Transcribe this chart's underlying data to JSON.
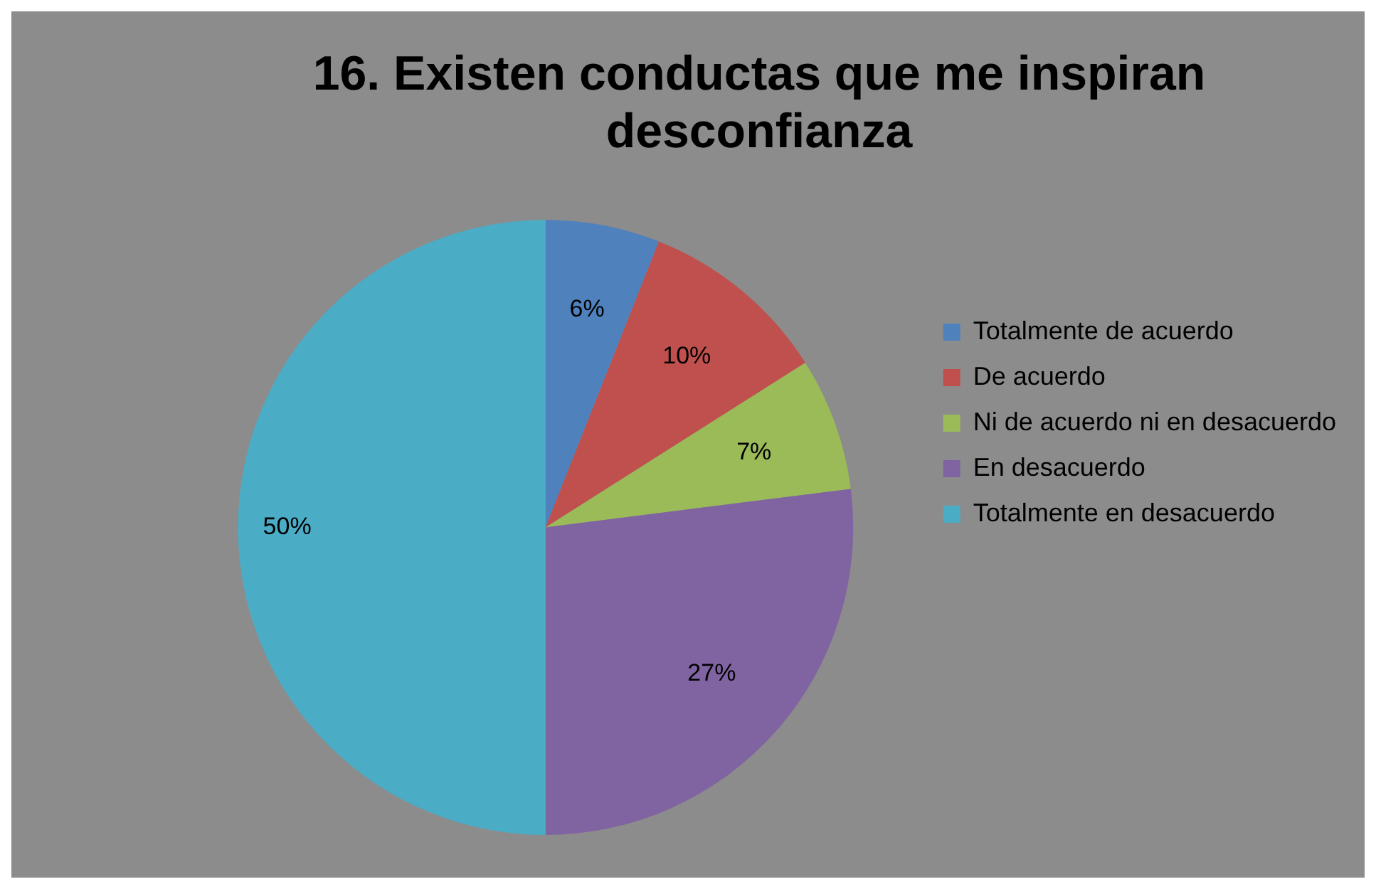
{
  "chart_data": {
    "type": "pie",
    "title": [
      "16. Existen conductas que me inspiran",
      "desconfianza"
    ],
    "categories": [
      "Totalmente de acuerdo",
      "De acuerdo",
      "Ni de acuerdo ni en desacuerdo",
      "En desacuerdo",
      "Totalmente en desacuerdo"
    ],
    "values": [
      6,
      10,
      7,
      27,
      50
    ],
    "colors": [
      "#4f81bd",
      "#c0504d",
      "#9bbb59",
      "#8064a2",
      "#4bacc6"
    ],
    "value_labels": [
      "6%",
      "10%",
      "7%",
      "27%",
      "50%"
    ],
    "legend": "right"
  }
}
